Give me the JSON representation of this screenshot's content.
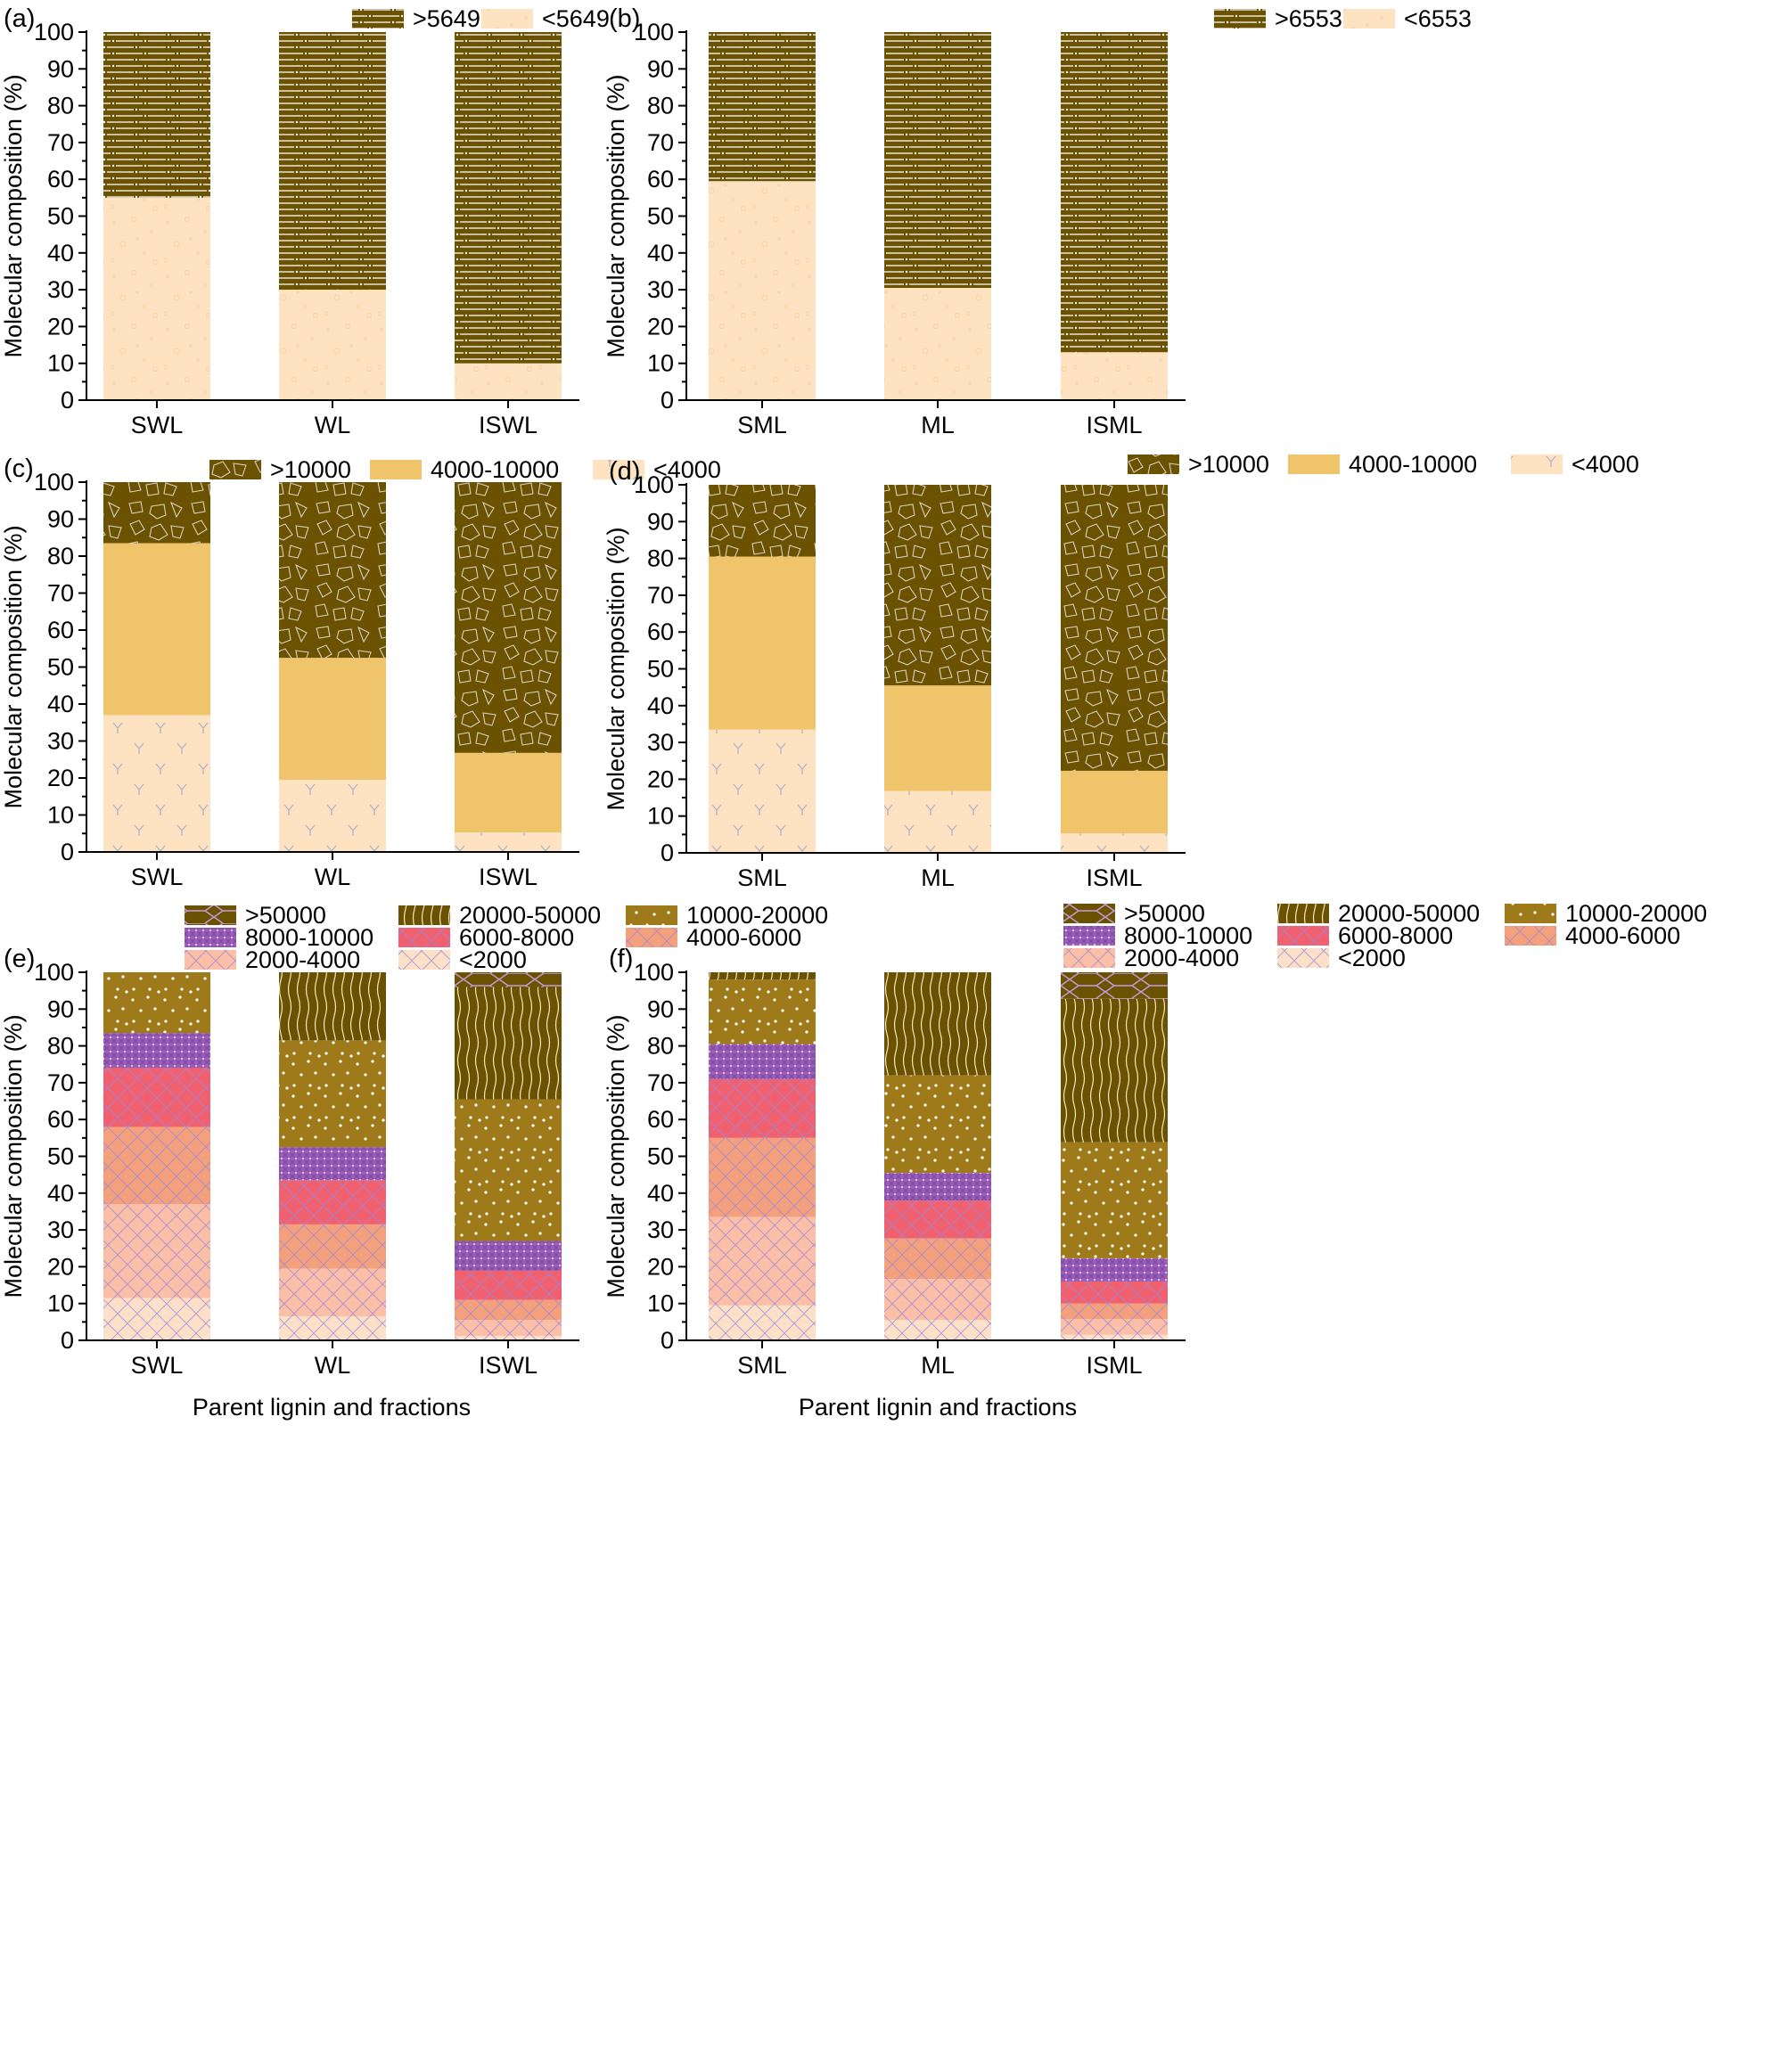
{
  "colors": {
    "darkbrown": "#6b5200",
    "peach": "#fde3c1",
    "gold": "#f0c46a",
    "mustard": "#9e7a1a",
    "purple": "#a85cae",
    "pink": "#f0606f",
    "orange": "#f5a07d",
    "salmon": "#fbbfa7",
    "lightpeach": "#fde0c8"
  },
  "chart_data": [
    {
      "panel": "(a)",
      "type": "bar",
      "stacked": true,
      "categories": [
        "SWL",
        "WL",
        "ISWL"
      ],
      "ylabel": "Molecular composition (%)",
      "xlabel": "",
      "ylim": [
        0,
        100
      ],
      "yticks": [
        "0",
        "10",
        "20",
        "30",
        "40",
        "50",
        "60",
        "70",
        "80",
        "90",
        "100"
      ],
      "legend_position": "top",
      "series": [
        {
          "name": "<5649",
          "color": "#fde3c1",
          "pattern": "circles",
          "values": [
            55,
            30,
            10
          ]
        },
        {
          "name": ">5649",
          "color": "#6b5200",
          "pattern": "dashlines",
          "values": [
            45,
            70,
            90
          ]
        }
      ]
    },
    {
      "panel": "(b)",
      "type": "bar",
      "stacked": true,
      "categories": [
        "SML",
        "ML",
        "ISML"
      ],
      "ylabel": "Molecular composition (%)",
      "xlabel": "",
      "ylim": [
        0,
        100
      ],
      "yticks": [
        "0",
        "10",
        "20",
        "30",
        "40",
        "50",
        "60",
        "70",
        "80",
        "90",
        "100"
      ],
      "legend_position": "top",
      "series": [
        {
          "name": "<6553",
          "color": "#fde3c1",
          "pattern": "circles",
          "values": [
            59.5,
            30.5,
            13
          ]
        },
        {
          "name": ">6553",
          "color": "#6b5200",
          "pattern": "dashlines",
          "values": [
            40.5,
            69.5,
            87
          ]
        }
      ]
    },
    {
      "panel": "(c)",
      "type": "bar",
      "stacked": true,
      "categories": [
        "SWL",
        "WL",
        "ISWL"
      ],
      "ylabel": "Molecular composition (%)",
      "xlabel": "",
      "ylim": [
        0,
        100
      ],
      "yticks": [
        "0",
        "10",
        "20",
        "30",
        "40",
        "50",
        "60",
        "70",
        "80",
        "90",
        "100"
      ],
      "legend_position": "top",
      "series": [
        {
          "name": "<4000",
          "color": "#fde3c1",
          "pattern": "ys",
          "values": [
            37,
            19.5,
            5.3
          ]
        },
        {
          "name": "4000-10000",
          "color": "#f0c46a",
          "pattern": "none",
          "values": [
            46.5,
            33,
            21.5
          ]
        },
        {
          "name": ">10000",
          "color": "#6b5200",
          "pattern": "polys",
          "values": [
            16.5,
            47.5,
            73.2
          ]
        }
      ]
    },
    {
      "panel": "(d)",
      "type": "bar",
      "stacked": true,
      "categories": [
        "SML",
        "ML",
        "ISML"
      ],
      "ylabel": "Molecular composition (%)",
      "xlabel": "",
      "ylim": [
        0,
        100
      ],
      "yticks": [
        "0",
        "10",
        "20",
        "30",
        "40",
        "50",
        "60",
        "70",
        "80",
        "90",
        "100"
      ],
      "legend_position": "top",
      "series": [
        {
          "name": "<4000",
          "color": "#fde3c1",
          "pattern": "ys",
          "values": [
            33.5,
            16.8,
            5.3
          ]
        },
        {
          "name": "4000-10000",
          "color": "#f0c46a",
          "pattern": "none",
          "values": [
            47,
            28.7,
            17
          ]
        },
        {
          "name": ">10000",
          "color": "#6b5200",
          "pattern": "polys",
          "values": [
            19.5,
            54.5,
            77.7
          ]
        }
      ]
    },
    {
      "panel": "(e)",
      "type": "bar",
      "stacked": true,
      "categories": [
        "SWL",
        "WL",
        "ISWL"
      ],
      "ylabel": "Molecular composition (%)",
      "xlabel": "Parent lignin and fractions",
      "ylim": [
        0,
        100
      ],
      "yticks": [
        "0",
        "10",
        "20",
        "30",
        "40",
        "50",
        "60",
        "70",
        "80",
        "90",
        "100"
      ],
      "legend_position": "top",
      "series": [
        {
          "name": "<2000",
          "color": "#fde0c8",
          "pattern": "crosshatch",
          "values": [
            11.5,
            6.5,
            1.2
          ]
        },
        {
          "name": "2000-4000",
          "color": "#fbbfa7",
          "pattern": "crosshatch",
          "values": [
            25.5,
            13,
            4.3
          ]
        },
        {
          "name": "4000-6000",
          "color": "#f5a07d",
          "pattern": "crosshatch",
          "values": [
            21,
            12,
            5.5
          ]
        },
        {
          "name": "6000-8000",
          "color": "#f0606f",
          "pattern": "crosshatch",
          "values": [
            16,
            12,
            8
          ]
        },
        {
          "name": "8000-10000",
          "color": "#a85cae",
          "pattern": "dense",
          "values": [
            9.5,
            9,
            8
          ]
        },
        {
          "name": "10000-20000",
          "color": "#9e7a1a",
          "pattern": "dots",
          "values": [
            16.5,
            29,
            38.5
          ]
        },
        {
          "name": "20000-50000",
          "color": "#6b5200",
          "pattern": "wavy",
          "values": [
            0,
            18.5,
            30.5
          ]
        },
        {
          "name": ">50000",
          "color": "#6b5200",
          "pattern": "hex",
          "values": [
            0,
            0,
            4
          ]
        }
      ]
    },
    {
      "panel": "(f)",
      "type": "bar",
      "stacked": true,
      "categories": [
        "SML",
        "ML",
        "ISML"
      ],
      "ylabel": "Molecular composition (%)",
      "xlabel": "Parent lignin and fractions",
      "ylim": [
        0,
        100
      ],
      "yticks": [
        "0",
        "10",
        "20",
        "30",
        "40",
        "50",
        "60",
        "70",
        "80",
        "90",
        "100"
      ],
      "legend_position": "top",
      "series": [
        {
          "name": "<2000",
          "color": "#fde0c8",
          "pattern": "crosshatch",
          "values": [
            9.5,
            5.5,
            1.5
          ]
        },
        {
          "name": "2000-4000",
          "color": "#fbbfa7",
          "pattern": "crosshatch",
          "values": [
            24,
            11.2,
            4.3
          ]
        },
        {
          "name": "4000-6000",
          "color": "#f5a07d",
          "pattern": "crosshatch",
          "values": [
            21.5,
            11,
            4.2
          ]
        },
        {
          "name": "6000-8000",
          "color": "#f0606f",
          "pattern": "crosshatch",
          "values": [
            16,
            10.3,
            6
          ]
        },
        {
          "name": "8000-10000",
          "color": "#a85cae",
          "pattern": "dense",
          "values": [
            9.5,
            7.5,
            6.3
          ]
        },
        {
          "name": "10000-20000",
          "color": "#9e7a1a",
          "pattern": "dots",
          "values": [
            17.5,
            26.5,
            31.5
          ]
        },
        {
          "name": "20000-50000",
          "color": "#6b5200",
          "pattern": "wavy",
          "values": [
            2,
            28,
            39
          ]
        },
        {
          "name": ">50000",
          "color": "#6b5200",
          "pattern": "hex",
          "values": [
            0,
            0,
            7.2
          ]
        }
      ]
    }
  ]
}
